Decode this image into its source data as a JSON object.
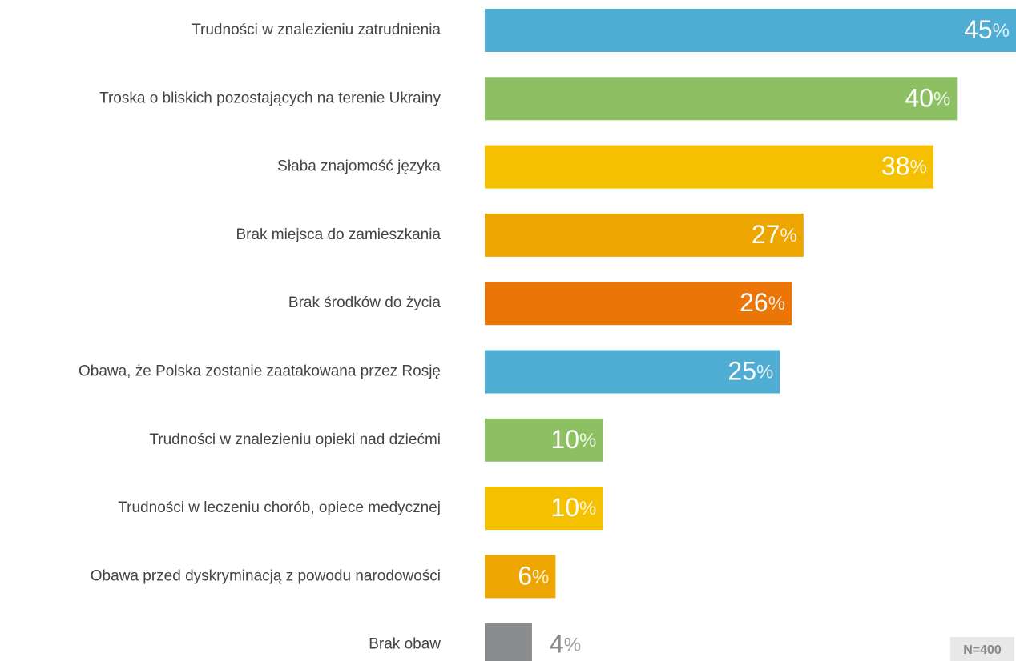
{
  "chart_data": {
    "type": "bar",
    "orientation": "horizontal",
    "categories": [
      "Trudności w znalezieniu zatrudnienia",
      "Troska o bliskich pozostających na terenie Ukrainy",
      "Słaba znajomość języka",
      "Brak miejsca do zamieszkania",
      "Brak środków do życia",
      "Obawa, że Polska zostanie zaatakowana przez Rosję",
      "Trudności w znalezieniu opieki nad dziećmi",
      "Trudności w leczeniu chorób, opiece medycznej",
      "Obawa przed dyskryminacją z powodu narodowości",
      "Brak obaw"
    ],
    "values": [
      45,
      40,
      38,
      27,
      26,
      25,
      10,
      10,
      6,
      4
    ],
    "value_labels": [
      "45%",
      "40%",
      "38%",
      "27%",
      "26%",
      "25%",
      "10%",
      "10%",
      "6%",
      "4%"
    ],
    "colors": [
      "#4fadd3",
      "#8dc063",
      "#f5c000",
      "#eda600",
      "#ec7508",
      "#4fadd3",
      "#8dc063",
      "#f5c000",
      "#eda600",
      "#8a8c8e"
    ],
    "xlim": [
      0,
      45
    ],
    "note": "N=400"
  }
}
